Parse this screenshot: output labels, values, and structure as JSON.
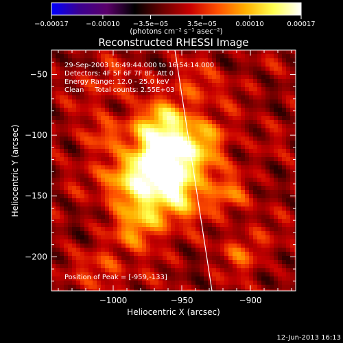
{
  "chart_data": {
    "type": "heatmap",
    "title": "Reconstructed RHESSI Image",
    "xlabel": "Heliocentric X (arcsec)",
    "ylabel": "Heliocentric Y (arcsec)",
    "xlim": [
      -1045,
      -867
    ],
    "ylim": [
      -228,
      -30
    ],
    "xticks": [
      -1000,
      -950,
      -900
    ],
    "xtick_labels": [
      "−1000",
      "−950",
      "−900"
    ],
    "yticks": [
      -50,
      -100,
      -150,
      -200
    ],
    "ytick_labels": [
      "−50",
      "−100",
      "−150",
      "−200"
    ],
    "colorbar": {
      "range": [
        -0.00017,
        0.00017
      ],
      "ticks": [
        -0.00017,
        -0.0001,
        -3.5e-05,
        3.5e-05,
        0.0001,
        0.00017
      ],
      "tick_labels": [
        "−0.00017",
        "−0.00010",
        "−3.5e−05",
        "3.5e−05",
        "0.00010",
        "0.00017"
      ],
      "unit_label": "(photons cm⁻² s⁻¹ asec⁻²)",
      "colormap": [
        "#0000ff",
        "#3b0090",
        "#5a006a",
        "#000000",
        "#6a0000",
        "#c80000",
        "#ff5000",
        "#ffb000",
        "#ffff50",
        "#ffffff"
      ]
    },
    "info_lines": [
      "29-Sep-2003 16:49:44.000 to 16:54:14.000",
      "Detectors: 4F 5F 6F 7F 8F, Att 0",
      "Energy Range: 12.0 - 25.0 keV",
      "Clean     Total counts: 2.55E+03"
    ],
    "peak_label": "Position of Peak = [-959,-133]",
    "peak": [
      -959,
      -133
    ],
    "limb": {
      "x_top": -955,
      "x_bottom": -928
    },
    "source_blobs": [
      {
        "x": -973,
        "y": -95,
        "w": 0.55
      },
      {
        "x": -956,
        "y": -86,
        "w": 0.5
      },
      {
        "x": -965,
        "y": -112,
        "w": 0.6
      },
      {
        "x": -946,
        "y": -108,
        "w": 0.5
      },
      {
        "x": -959,
        "y": -133,
        "w": 1.0
      },
      {
        "x": -975,
        "y": -125,
        "w": 0.65
      },
      {
        "x": -984,
        "y": -150,
        "w": 0.5
      },
      {
        "x": -949,
        "y": -152,
        "w": 0.55
      },
      {
        "x": -970,
        "y": -165,
        "w": 0.45
      },
      {
        "x": -996,
        "y": -135,
        "w": 0.45
      },
      {
        "x": -983,
        "y": -180,
        "w": 0.38
      },
      {
        "x": -1005,
        "y": -210,
        "w": 0.3
      },
      {
        "x": -935,
        "y": -125,
        "w": 0.35
      },
      {
        "x": -925,
        "y": -100,
        "w": 0.3
      },
      {
        "x": -918,
        "y": -150,
        "w": 0.33
      },
      {
        "x": -905,
        "y": -195,
        "w": 0.28
      },
      {
        "x": -938,
        "y": -60,
        "w": 0.3
      },
      {
        "x": -1010,
        "y": -100,
        "w": 0.28
      },
      {
        "x": -1000,
        "y": -60,
        "w": 0.22
      }
    ],
    "timestamp": "12-Jun-2013 16:13"
  }
}
